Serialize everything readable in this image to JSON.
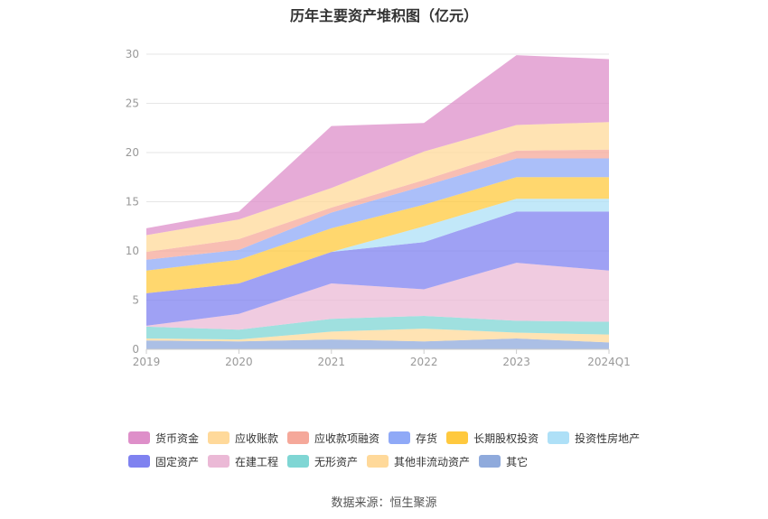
{
  "title": "历年主要资产堆积图（亿元）",
  "source": "数据来源：恒生聚源",
  "chart_data": {
    "type": "area",
    "stacked": true,
    "title": "历年主要资产堆积图（亿元）",
    "categories": [
      "2019",
      "2020",
      "2021",
      "2022",
      "2023",
      "2024Q1"
    ],
    "ylim": [
      0,
      30
    ],
    "yticks": [
      0,
      5,
      10,
      15,
      20,
      25,
      30
    ],
    "grid": true,
    "legend_position": "bottom",
    "series": [
      {
        "name": "其它",
        "color": "#8faadc",
        "values": [
          0.9,
          0.8,
          1.0,
          0.8,
          1.1,
          0.7
        ]
      },
      {
        "name": "其他非流动资产",
        "color": "#ffd99a",
        "values": [
          0.2,
          0.2,
          0.8,
          1.3,
          0.6,
          0.8
        ]
      },
      {
        "name": "无形资产",
        "color": "#7fd6d4",
        "values": [
          1.2,
          1.0,
          1.3,
          1.3,
          1.2,
          1.3
        ]
      },
      {
        "name": "在建工程",
        "color": "#ebb9d6",
        "values": [
          0.1,
          1.6,
          3.6,
          2.7,
          5.9,
          5.2
        ]
      },
      {
        "name": "固定资产",
        "color": "#7f82f0",
        "values": [
          3.3,
          3.1,
          3.2,
          4.8,
          5.2,
          6.0
        ]
      },
      {
        "name": "投资性房地产",
        "color": "#aee0f7",
        "values": [
          0.0,
          0.0,
          0.0,
          1.6,
          1.3,
          1.3
        ]
      },
      {
        "name": "长期股权投资",
        "color": "#ffc93e",
        "values": [
          2.3,
          2.4,
          2.4,
          2.2,
          2.2,
          2.2
        ]
      },
      {
        "name": "存货",
        "color": "#8fa9f7",
        "values": [
          1.1,
          1.0,
          1.6,
          1.9,
          1.9,
          1.9
        ]
      },
      {
        "name": "应收款项融资",
        "color": "#f5a89a",
        "values": [
          0.8,
          1.1,
          0.5,
          0.6,
          0.8,
          0.9
        ]
      },
      {
        "name": "应收账款",
        "color": "#ffd99a",
        "values": [
          1.7,
          2.0,
          2.0,
          2.9,
          2.6,
          2.8
        ]
      },
      {
        "name": "货币资金",
        "color": "#de8fc9",
        "values": [
          0.7,
          0.8,
          6.3,
          2.9,
          7.1,
          6.4
        ]
      }
    ],
    "legend": [
      [
        "货币资金",
        "应收账款",
        "应收款项融资",
        "存货",
        "长期股权投资",
        "投资性房地产"
      ],
      [
        "固定资产",
        "在建工程",
        "无形资产",
        "其他非流动资产",
        "其它"
      ]
    ]
  }
}
